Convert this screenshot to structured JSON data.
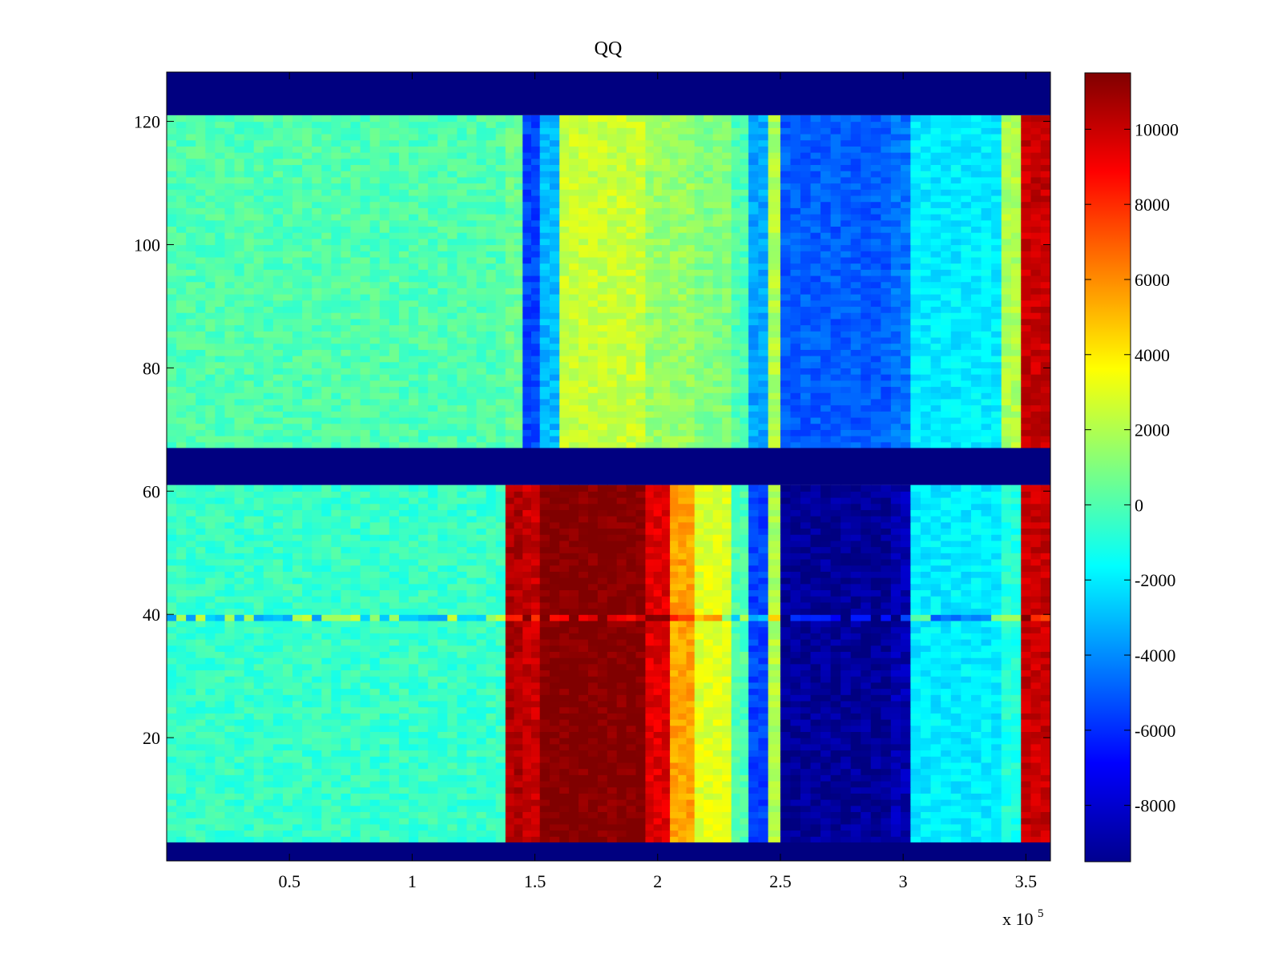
{
  "chart_data": {
    "type": "heatmap",
    "title": "QQ",
    "xlabel": "",
    "ylabel": "",
    "x_multiplier_label": "x 10",
    "x_multiplier_exponent": "5",
    "xlim": [
      0,
      3.6
    ],
    "ylim": [
      0,
      128
    ],
    "xticks": [
      {
        "value": 0.5,
        "label": "0.5"
      },
      {
        "value": 1,
        "label": "1"
      },
      {
        "value": 1.5,
        "label": "1.5"
      },
      {
        "value": 2,
        "label": "2"
      },
      {
        "value": 2.5,
        "label": "2.5"
      },
      {
        "value": 3,
        "label": "3"
      },
      {
        "value": 3.5,
        "label": "3.5"
      }
    ],
    "yticks": [
      {
        "value": 20,
        "label": "20"
      },
      {
        "value": 40,
        "label": "40"
      },
      {
        "value": 60,
        "label": "60"
      },
      {
        "value": 80,
        "label": "80"
      },
      {
        "value": 100,
        "label": "100"
      },
      {
        "value": 120,
        "label": "120"
      }
    ],
    "colorbar": {
      "colormap": "jet",
      "clim": [
        -9500,
        11500
      ],
      "ticks": [
        {
          "value": -8000,
          "label": "-8000"
        },
        {
          "value": -6000,
          "label": "-6000"
        },
        {
          "value": -4000,
          "label": "-4000"
        },
        {
          "value": -2000,
          "label": "-2000"
        },
        {
          "value": 0,
          "label": "0"
        },
        {
          "value": 2000,
          "label": "2000"
        },
        {
          "value": 4000,
          "label": "4000"
        },
        {
          "value": 6000,
          "label": "6000"
        },
        {
          "value": 8000,
          "label": "8000"
        },
        {
          "value": 10000,
          "label": "10000"
        }
      ]
    },
    "masked_row_bands": [
      {
        "y_from": 121,
        "y_to": 128
      },
      {
        "y_from": 61,
        "y_to": 67
      },
      {
        "y_from": 0,
        "y_to": 3
      }
    ],
    "data_row_bands": [
      {
        "name": "upper",
        "y_from": 67,
        "y_to": 121
      },
      {
        "name": "lower",
        "y_from": 3,
        "y_to": 61
      }
    ],
    "column_profiles": {
      "x_breakpoints": [
        0,
        1.38,
        1.45,
        1.52,
        1.6,
        1.95,
        2.05,
        2.15,
        2.3,
        2.37,
        2.45,
        2.5,
        2.95,
        3.03,
        3.4,
        3.48,
        3.6
      ],
      "upper_values": [
        0,
        500,
        -5500,
        -3000,
        2500,
        1500,
        1500,
        1000,
        0,
        -3500,
        2000,
        -5000,
        -4500,
        -2000,
        2000,
        10000
      ],
      "lower_values": [
        -500,
        10500,
        10000,
        11500,
        11500,
        9500,
        5500,
        3000,
        0,
        -5500,
        2000,
        -9000,
        -8500,
        -2000,
        -1000,
        10000
      ]
    },
    "highlight_row": {
      "y": 39,
      "note": "row with spiky values across all columns"
    }
  }
}
